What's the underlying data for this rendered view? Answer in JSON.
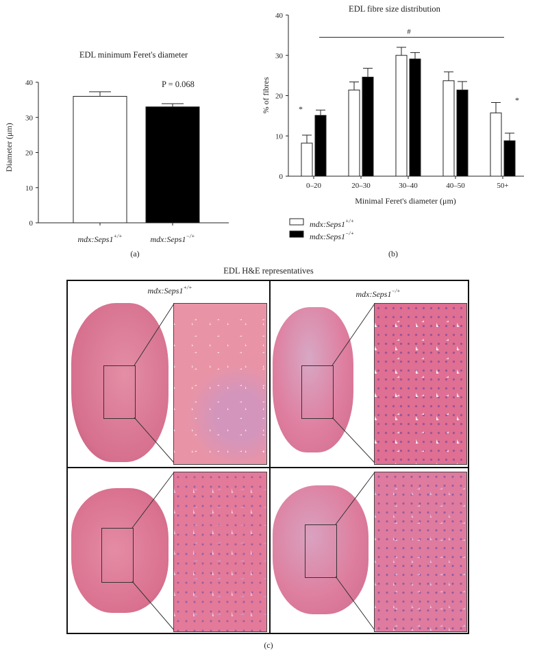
{
  "panel_a": {
    "title": "EDL minimum Feret's diameter",
    "ylabel": "Diameter (μm)",
    "pvalue_label": "P = 0.068",
    "panel_label": "(a)",
    "x_labels": [
      {
        "prefix": "mdx:Seps1",
        "sup": "+/+"
      },
      {
        "prefix": "mdx:Seps1",
        "sup": "−/+"
      }
    ]
  },
  "panel_b": {
    "title": "EDL fibre size distribution",
    "ylabel": "% of fibres",
    "xlabel": "Minimal Feret's diameter (μm)",
    "panel_label": "(b)",
    "hash": "#",
    "star": "*",
    "legend": [
      {
        "prefix": "mdx:Seps1",
        "sup": "+/+",
        "color": "#ffffff"
      },
      {
        "prefix": "mdx:Seps1",
        "sup": "−/+",
        "color": "#000000"
      }
    ]
  },
  "panel_c": {
    "title": "EDL H&E representatives",
    "panel_label": "(c)",
    "col_labels": [
      {
        "prefix": "mdx:Seps1",
        "sup": "+/+"
      },
      {
        "prefix": "mdx:Seps1",
        "sup": "−/+"
      }
    ],
    "stain_colors": {
      "tissue": "#e0789a",
      "tissue_dark": "#c85a7e",
      "membrane": "#f6dde6",
      "nuclei": "#6a4a9e"
    }
  },
  "chart_data": [
    {
      "type": "bar",
      "title": "EDL minimum Feret's diameter",
      "xlabel": "",
      "ylabel": "Diameter (μm)",
      "ylim": [
        0,
        40
      ],
      "yticks": [
        0,
        10,
        20,
        30,
        40
      ],
      "categories": [
        "mdx:Seps1+/+",
        "mdx:Seps1−/+"
      ],
      "values": [
        36.0,
        33.0
      ],
      "errors": [
        1.3,
        0.9
      ],
      "colors": [
        "#ffffff",
        "#000000"
      ],
      "annotations": [
        "P = 0.068"
      ],
      "grid": false
    },
    {
      "type": "bar",
      "title": "EDL fibre size distribution",
      "xlabel": "Minimal Feret's diameter (μm)",
      "ylabel": "% of fibres",
      "ylim": [
        0,
        40
      ],
      "yticks": [
        0,
        10,
        20,
        30,
        40
      ],
      "categories": [
        "0–20",
        "20–30",
        "30–40",
        "40–50",
        "50+"
      ],
      "series": [
        {
          "name": "mdx:Seps1+/+",
          "values": [
            8.2,
            21.4,
            30.0,
            23.7,
            15.7
          ],
          "errors": [
            2.0,
            2.0,
            2.0,
            2.2,
            2.6
          ],
          "color": "#ffffff"
        },
        {
          "name": "mdx:Seps1−/+",
          "values": [
            15.1,
            24.6,
            29.1,
            21.4,
            8.8
          ],
          "errors": [
            1.3,
            2.2,
            1.6,
            2.1,
            1.9
          ],
          "color": "#000000"
        }
      ],
      "significance": [
        "*",
        "",
        "",
        "",
        "*"
      ],
      "bracket": "#",
      "legend": "bottom-left",
      "grid": false
    }
  ]
}
